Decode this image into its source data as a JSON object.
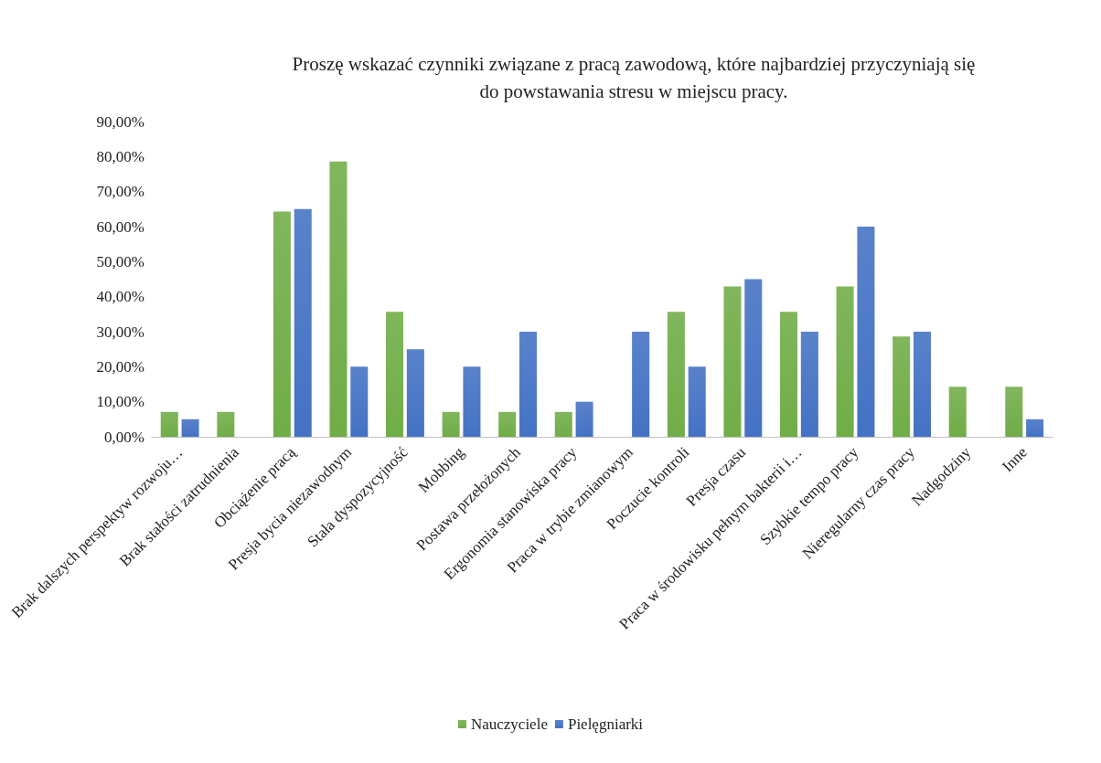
{
  "chart_data": {
    "type": "bar",
    "title": "Proszę wskazać czynniki związane z pracą zawodową, które najbardziej przyczyniają się\ndo powstawania stresu w miejscu pracy.",
    "categories": [
      "Brak dalszych perspektyw rozwoju…",
      "Brak stałości zatrudnienia",
      "Obciążenie pracą",
      "Presja bycia niezawodnym",
      "Stała dyspozycyjność",
      "Mobbing",
      "Postawa przełożonych",
      "Ergonomia stanowiska pracy",
      "Praca w trybie zmianowym",
      "Poczucie kontroli",
      "Presja czasu",
      "Praca w środowisku pełnym bakterii i…",
      "Szybkie tempo pracy",
      "Nieregularny czas pracy",
      "Nadgodziny",
      "Inne"
    ],
    "series": [
      {
        "name": "Nauczyciele",
        "color": "#70ad47",
        "values": [
          7.1,
          7.1,
          64.3,
          78.6,
          35.7,
          7.1,
          7.1,
          7.1,
          0,
          35.7,
          42.9,
          35.7,
          42.9,
          28.6,
          14.3,
          14.3
        ]
      },
      {
        "name": "Pielęgniarki",
        "color": "#4472c4",
        "values": [
          5,
          0,
          65,
          20,
          25,
          20,
          30,
          10,
          30,
          20,
          45,
          30,
          60,
          30,
          0,
          5
        ]
      }
    ],
    "ylim": [
      0,
      90
    ],
    "yticks": [
      {
        "value": 0,
        "label": "0,00%"
      },
      {
        "value": 10,
        "label": "10,00%"
      },
      {
        "value": 20,
        "label": "20,00%"
      },
      {
        "value": 30,
        "label": "30,00%"
      },
      {
        "value": 40,
        "label": "40,00%"
      },
      {
        "value": 50,
        "label": "50,00%"
      },
      {
        "value": 60,
        "label": "60,00%"
      },
      {
        "value": 70,
        "label": "70,00%"
      },
      {
        "value": 80,
        "label": "80,00%"
      },
      {
        "value": 90,
        "label": "90,00%"
      }
    ],
    "grid": false,
    "legend": "bottom"
  }
}
